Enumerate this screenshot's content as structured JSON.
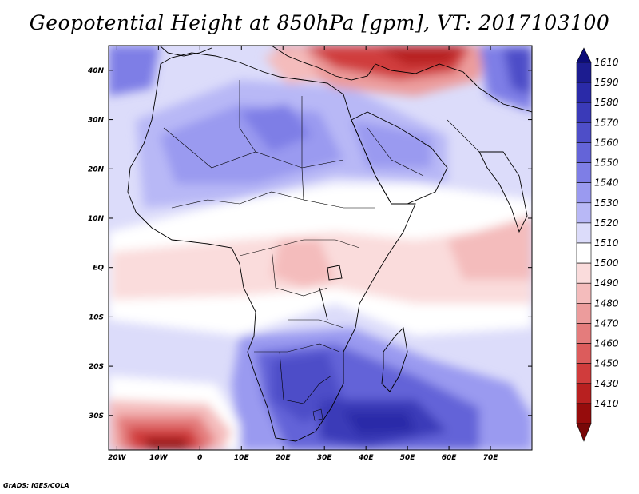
{
  "title": "Geopotential Height at 850hPa [gpm], VT: 2017103100",
  "footer": "GrADS: IGES/COLA",
  "map": {
    "lon_range": [
      -22,
      80
    ],
    "lat_range": [
      -37,
      45
    ],
    "lon_ticks": [
      {
        "value": -20,
        "label": "20W"
      },
      {
        "value": -10,
        "label": "10W"
      },
      {
        "value": 0,
        "label": "0"
      },
      {
        "value": 10,
        "label": "10E"
      },
      {
        "value": 20,
        "label": "20E"
      },
      {
        "value": 30,
        "label": "30E"
      },
      {
        "value": 40,
        "label": "40E"
      },
      {
        "value": 50,
        "label": "50E"
      },
      {
        "value": 60,
        "label": "60E"
      },
      {
        "value": 70,
        "label": "70E"
      }
    ],
    "lat_ticks": [
      {
        "value": 40,
        "label": "40N"
      },
      {
        "value": 30,
        "label": "30N"
      },
      {
        "value": 20,
        "label": "20N"
      },
      {
        "value": 10,
        "label": "10N"
      },
      {
        "value": 0,
        "label": "EQ"
      },
      {
        "value": -10,
        "label": "10S"
      },
      {
        "value": -20,
        "label": "20S"
      },
      {
        "value": -30,
        "label": "30S"
      }
    ]
  },
  "colorbar": {
    "levels": [
      {
        "label": "1610",
        "color": "#1c1c90"
      },
      {
        "label": "1590",
        "color": "#2a2aa8"
      },
      {
        "label": "1580",
        "color": "#3a3ab8"
      },
      {
        "label": "1570",
        "color": "#4e4ec8"
      },
      {
        "label": "1560",
        "color": "#6464d8"
      },
      {
        "label": "1550",
        "color": "#7e7ee6"
      },
      {
        "label": "1540",
        "color": "#9a9af0"
      },
      {
        "label": "1530",
        "color": "#b8b8f6"
      },
      {
        "label": "1520",
        "color": "#dcdcfa"
      },
      {
        "label": "1510",
        "color": "#ffffff"
      },
      {
        "label": "1500",
        "color": "#fadcdc"
      },
      {
        "label": "1490",
        "color": "#f4bcbc"
      },
      {
        "label": "1480",
        "color": "#ec9c9c"
      },
      {
        "label": "1470",
        "color": "#e47c7c"
      },
      {
        "label": "1460",
        "color": "#dc5c5c"
      },
      {
        "label": "1450",
        "color": "#d03c3c"
      },
      {
        "label": "1430",
        "color": "#b82020"
      },
      {
        "label": "1410",
        "color": "#960c0c"
      }
    ],
    "top_color": "#0c0c78",
    "bottom_color": "#780808"
  },
  "field_regions": [
    {
      "name": "africa-west-sahara",
      "level": "1540",
      "color": "#9a9af0"
    },
    {
      "name": "south-africa-high",
      "level": "1570",
      "color": "#4e4ec8"
    },
    {
      "name": "south-indian-ocean-high",
      "level": "1590",
      "color": "#2a2aa8"
    },
    {
      "name": "europe-low",
      "level": "1430",
      "color": "#b82020"
    },
    {
      "name": "south-atlantic-low",
      "level": "1410",
      "color": "#960c0c"
    },
    {
      "name": "equatorial-band",
      "level": "1500",
      "color": "#fadcdc"
    },
    {
      "name": "arabian-sea",
      "level": "1490",
      "color": "#f4bcbc"
    }
  ]
}
